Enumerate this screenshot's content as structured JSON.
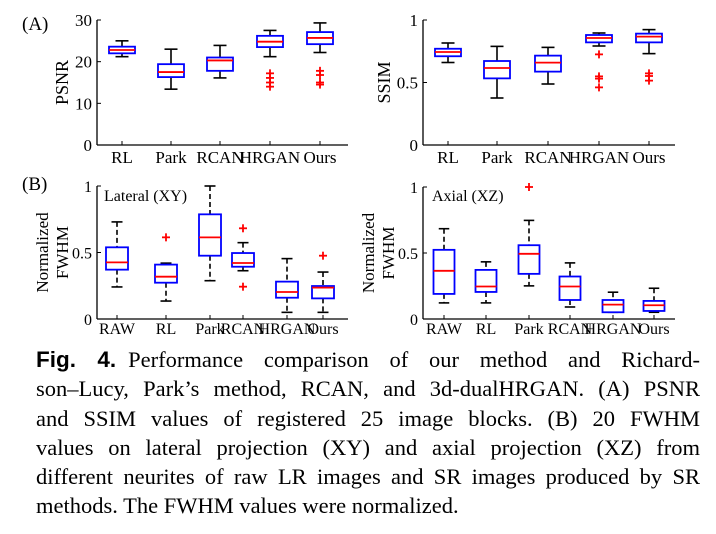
{
  "chart_data": [
    {
      "type": "boxplot",
      "panel_label": "(A)",
      "ylabel": "PSNR",
      "ylim": [
        0,
        30
      ],
      "yticks": [
        "0",
        "10",
        "20",
        "30"
      ],
      "ytick_values": [
        0,
        10,
        20,
        30
      ],
      "categories": [
        "RL",
        "Park",
        "RCAN",
        "HRGAN",
        "Ours"
      ],
      "whisker_style": "solid",
      "boxes": [
        {
          "lower": 21.2,
          "q1": 22.0,
          "median": 22.8,
          "q3": 23.6,
          "upper": 25.0,
          "outliers": []
        },
        {
          "lower": 13.4,
          "q1": 16.3,
          "median": 17.5,
          "q3": 19.4,
          "upper": 23.0,
          "outliers": []
        },
        {
          "lower": 16.1,
          "q1": 17.8,
          "median": 20.3,
          "q3": 21.0,
          "upper": 23.9,
          "outliers": []
        },
        {
          "lower": 21.2,
          "q1": 23.5,
          "median": 24.8,
          "q3": 26.2,
          "upper": 27.5,
          "outliers": [
            17.2,
            16.1,
            15.0,
            14.0
          ]
        },
        {
          "lower": 22.2,
          "q1": 24.2,
          "median": 25.7,
          "q3": 27.1,
          "upper": 29.3,
          "outliers": [
            17.8,
            16.8,
            15.0,
            14.5
          ]
        }
      ]
    },
    {
      "type": "boxplot",
      "panel_label": "",
      "ylabel": "SSIM",
      "ylim": [
        0,
        1
      ],
      "yticks": [
        "0",
        "0.5",
        "1"
      ],
      "ytick_values": [
        0,
        0.5,
        1
      ],
      "categories": [
        "RL",
        "Park",
        "RCAN",
        "HRGAN",
        "Ours"
      ],
      "whisker_style": "solid",
      "boxes": [
        {
          "lower": 0.66,
          "q1": 0.71,
          "median": 0.744,
          "q3": 0.77,
          "upper": 0.816,
          "outliers": []
        },
        {
          "lower": 0.376,
          "q1": 0.533,
          "median": 0.616,
          "q3": 0.672,
          "upper": 0.789,
          "outliers": []
        },
        {
          "lower": 0.488,
          "q1": 0.587,
          "median": 0.659,
          "q3": 0.715,
          "upper": 0.781,
          "outliers": []
        },
        {
          "lower": 0.792,
          "q1": 0.821,
          "median": 0.856,
          "q3": 0.88,
          "upper": 0.896,
          "outliers": [
            0.725,
            0.549,
            0.531,
            0.461
          ]
        },
        {
          "lower": 0.731,
          "q1": 0.821,
          "median": 0.867,
          "q3": 0.891,
          "upper": 0.923,
          "outliers": [
            0.573,
            0.552,
            0.515
          ]
        }
      ]
    },
    {
      "type": "boxplot",
      "panel_label": "(B)",
      "annotation": "Lateral (XY)",
      "ylabel": [
        "Normalized",
        "FWHM"
      ],
      "ylim": [
        0,
        1
      ],
      "yticks": [
        "0",
        "0.5",
        "1"
      ],
      "ytick_values": [
        0,
        0.5,
        1
      ],
      "categories": [
        "RAW",
        "RL",
        "Park",
        "RCAN",
        "HRGAN",
        "Ours"
      ],
      "whisker_style": "dashed",
      "boxes": [
        {
          "lower": 0.241,
          "q1": 0.371,
          "median": 0.426,
          "q3": 0.539,
          "upper": 0.73,
          "outliers": []
        },
        {
          "lower": 0.135,
          "q1": 0.273,
          "median": 0.318,
          "q3": 0.409,
          "upper": 0.42,
          "outliers": [
            0.614
          ]
        },
        {
          "lower": 0.288,
          "q1": 0.476,
          "median": 0.614,
          "q3": 0.787,
          "upper": 1.0,
          "outliers": []
        },
        {
          "lower": 0.363,
          "q1": 0.393,
          "median": 0.421,
          "q3": 0.496,
          "upper": 0.574,
          "outliers": [
            0.682,
            0.243
          ]
        },
        {
          "lower": 0.05,
          "q1": 0.16,
          "median": 0.203,
          "q3": 0.281,
          "upper": 0.454,
          "outliers": []
        },
        {
          "lower": 0.05,
          "q1": 0.155,
          "median": 0.236,
          "q3": 0.248,
          "upper": 0.353,
          "outliers": [
            0.476
          ]
        }
      ]
    },
    {
      "type": "boxplot",
      "panel_label": "",
      "annotation": "Axial (XZ)",
      "ylabel": [
        "Normalized",
        "FWHM"
      ],
      "ylim": [
        0,
        1
      ],
      "yticks": [
        "0",
        "0.5",
        "1"
      ],
      "ytick_values": [
        0,
        0.5,
        1
      ],
      "categories": [
        "RAW",
        "RL",
        "Park",
        "RCAN",
        "HRGAN",
        "Ours"
      ],
      "whisker_style": "dashed",
      "boxes": [
        {
          "lower": 0.122,
          "q1": 0.19,
          "median": 0.365,
          "q3": 0.524,
          "upper": 0.684,
          "outliers": []
        },
        {
          "lower": 0.122,
          "q1": 0.205,
          "median": 0.246,
          "q3": 0.372,
          "upper": 0.433,
          "outliers": []
        },
        {
          "lower": 0.251,
          "q1": 0.342,
          "median": 0.494,
          "q3": 0.559,
          "upper": 0.747,
          "outliers": [
            1.0
          ]
        },
        {
          "lower": 0.091,
          "q1": 0.144,
          "median": 0.246,
          "q3": 0.322,
          "upper": 0.425,
          "outliers": []
        },
        {
          "lower": 0.051,
          "q1": 0.051,
          "median": 0.109,
          "q3": 0.144,
          "upper": 0.203,
          "outliers": []
        },
        {
          "lower": 0.051,
          "q1": 0.061,
          "median": 0.104,
          "q3": 0.137,
          "upper": 0.233,
          "outliers": []
        }
      ]
    }
  ],
  "colors": {
    "box": "#0000ff",
    "median": "#ff0000",
    "outlier": "#ff0000",
    "whisker": "#000000"
  },
  "caption": {
    "label": "Fig. 4.",
    "lines": [
      "Performance comparison of our method and Richard-",
      "son–Lucy, Park’s method, RCAN, and 3d-dualHRGAN. (A) PSNR",
      "and SSIM values of registered 25 image blocks. (B) 20 FWHM",
      "values on lateral projection (XY) and axial projection (XZ) from",
      "different neurites of raw LR images and SR images produced by SR",
      "methods. The FWHM values were normalized."
    ]
  }
}
